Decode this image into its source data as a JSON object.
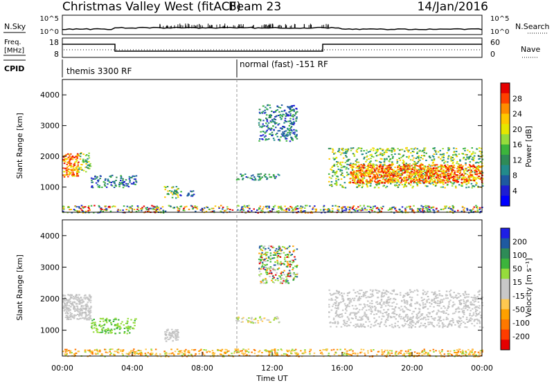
{
  "header": {
    "title": "Christmas Valley West (fitACF)",
    "beam": "Beam 23",
    "date": "14/Jan/2016"
  },
  "summary": {
    "nsky_label": "N.Sky",
    "nsearch_label": "N.Search",
    "freq_label_line1": "Freq.",
    "freq_label_line2": "[MHz]",
    "nave_label": "Nave",
    "cpid_label": "CPID",
    "count_ticks_left": [
      "10^5",
      "10^0"
    ],
    "count_ticks_right": [
      "10^5",
      "10^0"
    ],
    "freq_ticks": [
      "18",
      "8"
    ],
    "nave_ticks": [
      "60",
      "0"
    ],
    "cpid_segments": [
      {
        "label": "themis 3300 RF",
        "start_hour": 0,
        "end_hour": 10
      },
      {
        "label": "normal (fast) -151 RF",
        "start_hour": 10,
        "end_hour": 24
      }
    ]
  },
  "chart_data": [
    {
      "type": "heatmap",
      "name": "power-panel",
      "xlabel": "",
      "ylabel": "Slant Range [km]",
      "xlim": [
        0,
        24
      ],
      "ylim": [
        180,
        4500
      ],
      "yticks": [
        1000,
        2000,
        3000,
        4000
      ],
      "colorbar": {
        "label": "Power [dB]",
        "ticks": [
          "28",
          "24",
          "20",
          "16",
          "12",
          "8",
          "4"
        ],
        "colors": [
          "#e60000",
          "#ff4000",
          "#ff8c00",
          "#ffc800",
          "#e6e600",
          "#96dc3c",
          "#3cb43c",
          "#2e8b57",
          "#228b8b",
          "#1e5aa0",
          "#1e1ed2",
          "#0000ff"
        ],
        "range": [
          0,
          30
        ]
      },
      "regions": [
        {
          "x": [
            0.0,
            0.9
          ],
          "y": [
            1350,
            2100
          ],
          "level": "high"
        },
        {
          "x": [
            0.9,
            1.6
          ],
          "y": [
            1500,
            2150
          ],
          "level": "mid"
        },
        {
          "x": [
            1.6,
            4.2
          ],
          "y": [
            1000,
            1400
          ],
          "level": "low"
        },
        {
          "x": [
            5.8,
            6.6
          ],
          "y": [
            650,
            1050
          ],
          "level": "mid"
        },
        {
          "x": [
            6.3,
            7.5
          ],
          "y": [
            700,
            900
          ],
          "level": "low"
        },
        {
          "x": [
            9.9,
            12.4
          ],
          "y": [
            1250,
            1450
          ],
          "level": "low"
        },
        {
          "x": [
            11.2,
            13.4
          ],
          "y": [
            2500,
            3700
          ],
          "level": "low"
        },
        {
          "x": [
            15.2,
            24.0
          ],
          "y": [
            1000,
            2300
          ],
          "level": "mid"
        },
        {
          "x": [
            16.4,
            24.0
          ],
          "y": [
            1150,
            1750
          ],
          "level": "high"
        },
        {
          "x": [
            0.0,
            24.0
          ],
          "y": [
            180,
            420
          ],
          "level": "mixed"
        }
      ]
    },
    {
      "type": "heatmap",
      "name": "velocity-panel",
      "xlabel": "Time UT",
      "ylabel": "Slant Range [km]",
      "xlim": [
        0,
        24
      ],
      "ylim": [
        180,
        4500
      ],
      "yticks": [
        1000,
        2000,
        3000,
        4000
      ],
      "xticks": [
        "00:00",
        "04:00",
        "08:00",
        "12:00",
        "16:00",
        "20:00",
        "00:00"
      ],
      "colorbar": {
        "label": "Velocity [m s⁻¹]",
        "ticks": [
          "200",
          "100",
          "50",
          "15",
          "-15",
          "-50",
          "-100",
          "-200"
        ],
        "colors": [
          "#1e1ee6",
          "#1e5aa0",
          "#2e8b57",
          "#3cb43c",
          "#96dc3c",
          "#c8c8c8",
          "#c8c8c8",
          "#ffc850",
          "#ffa000",
          "#ff7800",
          "#ff3c00",
          "#e60000"
        ],
        "range": [
          -250,
          250
        ]
      },
      "regions": [
        {
          "x": [
            0.0,
            1.6
          ],
          "y": [
            1350,
            2150
          ],
          "level": "ground"
        },
        {
          "x": [
            1.6,
            4.2
          ],
          "y": [
            900,
            1400
          ],
          "level": "positive"
        },
        {
          "x": [
            5.8,
            6.6
          ],
          "y": [
            650,
            1050
          ],
          "level": "ground"
        },
        {
          "x": [
            9.9,
            12.4
          ],
          "y": [
            1250,
            1450
          ],
          "level": "slight"
        },
        {
          "x": [
            11.2,
            13.4
          ],
          "y": [
            2500,
            3700
          ],
          "level": "mixed"
        },
        {
          "x": [
            15.2,
            24.0
          ],
          "y": [
            1100,
            2300
          ],
          "level": "ground"
        },
        {
          "x": [
            0.0,
            24.0
          ],
          "y": [
            180,
            420
          ],
          "level": "negative"
        }
      ]
    }
  ]
}
